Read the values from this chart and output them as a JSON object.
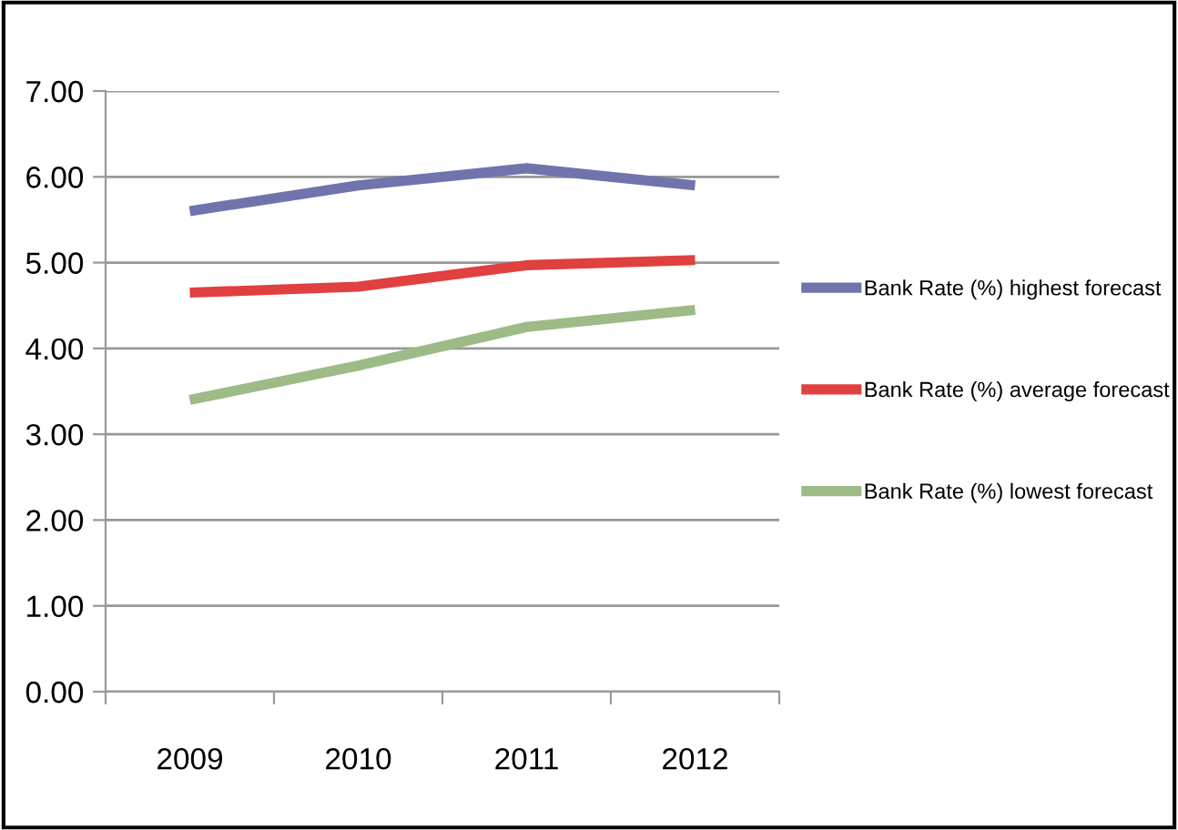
{
  "chart_data": {
    "type": "line",
    "categories": [
      "2009",
      "2010",
      "2011",
      "2012"
    ],
    "series": [
      {
        "name": "Bank Rate (%) highest forecast",
        "color": "#7074ad",
        "values": [
          5.6,
          5.9,
          6.1,
          5.9
        ]
      },
      {
        "name": "Bank Rate (%) average forecast",
        "color": "#e04040",
        "values": [
          4.65,
          4.72,
          4.97,
          5.03
        ]
      },
      {
        "name": "Bank Rate (%) lowest forecast",
        "color": "#9dbb86",
        "values": [
          3.4,
          3.8,
          4.25,
          4.45
        ]
      }
    ],
    "ylim": [
      0,
      7
    ],
    "yticks": [
      {
        "value": 0,
        "label": "0.00"
      },
      {
        "value": 1,
        "label": "1.00"
      },
      {
        "value": 2,
        "label": "2.00"
      },
      {
        "value": 3,
        "label": "3.00"
      },
      {
        "value": 4,
        "label": "4.00"
      },
      {
        "value": 5,
        "label": "5.00"
      },
      {
        "value": 6,
        "label": "6.00"
      },
      {
        "value": 7,
        "label": "7.00"
      }
    ],
    "grid": "y",
    "legend": "right",
    "marker": "none",
    "line_style": "solid"
  }
}
